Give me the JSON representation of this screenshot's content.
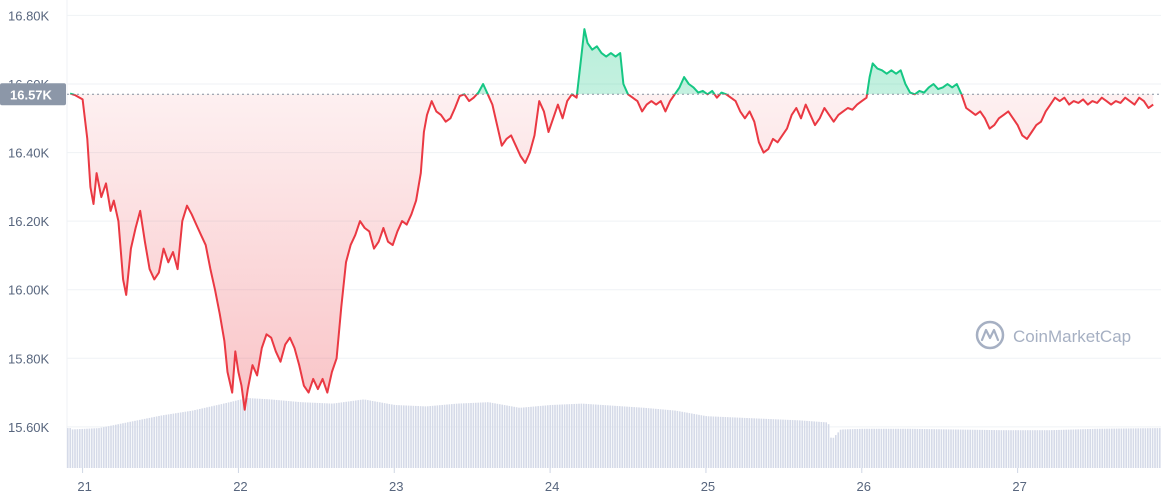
{
  "chart_data": {
    "type": "line",
    "title": "",
    "xlabel": "",
    "ylabel": "",
    "y_tick_labels": [
      "16.80K",
      "16.60K",
      "16.40K",
      "16.20K",
      "16.00K",
      "15.80K",
      "15.60K"
    ],
    "y_tick_values": [
      16800,
      16600,
      16400,
      16200,
      16000,
      15800,
      15600
    ],
    "x_tick_labels": [
      "21",
      "22",
      "23",
      "24",
      "25",
      "26",
      "27"
    ],
    "x_tick_values": [
      21,
      22,
      23,
      24,
      25,
      26,
      27
    ],
    "xlim": [
      20.9,
      27.92
    ],
    "ylim": [
      15480,
      16845
    ],
    "baseline": 16570,
    "current_price_label": "16.57K",
    "grid": true,
    "colors": {
      "up": "#16c784",
      "down": "#ea3943",
      "volume": "#d5dae8",
      "label_bg": "#8c97a8",
      "grid": "#eff2f5"
    },
    "series": [
      {
        "points": [
          [
            20.92,
            16572
          ],
          [
            20.95,
            16568
          ],
          [
            21.0,
            16555
          ],
          [
            21.03,
            16440
          ],
          [
            21.05,
            16300
          ],
          [
            21.07,
            16250
          ],
          [
            21.09,
            16340
          ],
          [
            21.12,
            16270
          ],
          [
            21.15,
            16310
          ],
          [
            21.18,
            16230
          ],
          [
            21.2,
            16260
          ],
          [
            21.23,
            16200
          ],
          [
            21.26,
            16030
          ],
          [
            21.28,
            15985
          ],
          [
            21.31,
            16120
          ],
          [
            21.34,
            16180
          ],
          [
            21.37,
            16230
          ],
          [
            21.4,
            16140
          ],
          [
            21.43,
            16060
          ],
          [
            21.46,
            16030
          ],
          [
            21.49,
            16050
          ],
          [
            21.52,
            16120
          ],
          [
            21.55,
            16080
          ],
          [
            21.58,
            16110
          ],
          [
            21.61,
            16060
          ],
          [
            21.64,
            16200
          ],
          [
            21.67,
            16245
          ],
          [
            21.7,
            16220
          ],
          [
            21.73,
            16190
          ],
          [
            21.76,
            16160
          ],
          [
            21.79,
            16130
          ],
          [
            21.82,
            16060
          ],
          [
            21.85,
            16000
          ],
          [
            21.88,
            15930
          ],
          [
            21.91,
            15850
          ],
          [
            21.93,
            15760
          ],
          [
            21.96,
            15700
          ],
          [
            21.98,
            15820
          ],
          [
            22.0,
            15760
          ],
          [
            22.02,
            15720
          ],
          [
            22.04,
            15650
          ],
          [
            22.06,
            15710
          ],
          [
            22.09,
            15780
          ],
          [
            22.12,
            15750
          ],
          [
            22.15,
            15830
          ],
          [
            22.18,
            15870
          ],
          [
            22.21,
            15860
          ],
          [
            22.24,
            15820
          ],
          [
            22.27,
            15790
          ],
          [
            22.3,
            15840
          ],
          [
            22.33,
            15860
          ],
          [
            22.36,
            15830
          ],
          [
            22.39,
            15780
          ],
          [
            22.42,
            15720
          ],
          [
            22.45,
            15700
          ],
          [
            22.48,
            15740
          ],
          [
            22.51,
            15710
          ],
          [
            22.54,
            15740
          ],
          [
            22.57,
            15700
          ],
          [
            22.6,
            15760
          ],
          [
            22.63,
            15800
          ],
          [
            22.66,
            15950
          ],
          [
            22.69,
            16080
          ],
          [
            22.72,
            16130
          ],
          [
            22.75,
            16160
          ],
          [
            22.78,
            16200
          ],
          [
            22.81,
            16180
          ],
          [
            22.84,
            16170
          ],
          [
            22.87,
            16120
          ],
          [
            22.9,
            16140
          ],
          [
            22.93,
            16180
          ],
          [
            22.96,
            16140
          ],
          [
            22.99,
            16130
          ],
          [
            23.02,
            16170
          ],
          [
            23.05,
            16200
          ],
          [
            23.08,
            16190
          ],
          [
            23.11,
            16220
          ],
          [
            23.14,
            16260
          ],
          [
            23.17,
            16340
          ],
          [
            23.19,
            16460
          ],
          [
            23.21,
            16510
          ],
          [
            23.24,
            16550
          ],
          [
            23.27,
            16520
          ],
          [
            23.3,
            16510
          ],
          [
            23.33,
            16490
          ],
          [
            23.36,
            16500
          ],
          [
            23.39,
            16530
          ],
          [
            23.42,
            16565
          ],
          [
            23.45,
            16570
          ],
          [
            23.48,
            16550
          ],
          [
            23.51,
            16560
          ],
          [
            23.54,
            16575
          ],
          [
            23.57,
            16600
          ],
          [
            23.6,
            16570
          ],
          [
            23.63,
            16540
          ],
          [
            23.66,
            16480
          ],
          [
            23.69,
            16420
          ],
          [
            23.72,
            16440
          ],
          [
            23.75,
            16450
          ],
          [
            23.78,
            16420
          ],
          [
            23.81,
            16390
          ],
          [
            23.84,
            16370
          ],
          [
            23.87,
            16400
          ],
          [
            23.9,
            16450
          ],
          [
            23.93,
            16550
          ],
          [
            23.96,
            16520
          ],
          [
            23.99,
            16460
          ],
          [
            24.02,
            16500
          ],
          [
            24.05,
            16540
          ],
          [
            24.08,
            16500
          ],
          [
            24.11,
            16550
          ],
          [
            24.14,
            16570
          ],
          [
            24.17,
            16560
          ],
          [
            24.2,
            16680
          ],
          [
            24.22,
            16760
          ],
          [
            24.24,
            16720
          ],
          [
            24.27,
            16700
          ],
          [
            24.3,
            16710
          ],
          [
            24.33,
            16690
          ],
          [
            24.36,
            16680
          ],
          [
            24.39,
            16690
          ],
          [
            24.42,
            16680
          ],
          [
            24.45,
            16690
          ],
          [
            24.47,
            16600
          ],
          [
            24.5,
            16570
          ],
          [
            24.53,
            16560
          ],
          [
            24.56,
            16550
          ],
          [
            24.59,
            16520
          ],
          [
            24.62,
            16540
          ],
          [
            24.65,
            16550
          ],
          [
            24.68,
            16540
          ],
          [
            24.71,
            16550
          ],
          [
            24.74,
            16520
          ],
          [
            24.77,
            16550
          ],
          [
            24.8,
            16570
          ],
          [
            24.83,
            16590
          ],
          [
            24.86,
            16620
          ],
          [
            24.89,
            16600
          ],
          [
            24.92,
            16590
          ],
          [
            24.95,
            16575
          ],
          [
            24.98,
            16580
          ],
          [
            25.01,
            16570
          ],
          [
            25.04,
            16580
          ],
          [
            25.07,
            16560
          ],
          [
            25.1,
            16575
          ],
          [
            25.13,
            16570
          ],
          [
            25.16,
            16560
          ],
          [
            25.19,
            16550
          ],
          [
            25.22,
            16520
          ],
          [
            25.25,
            16500
          ],
          [
            25.28,
            16520
          ],
          [
            25.31,
            16490
          ],
          [
            25.34,
            16430
          ],
          [
            25.37,
            16400
          ],
          [
            25.4,
            16410
          ],
          [
            25.43,
            16440
          ],
          [
            25.46,
            16430
          ],
          [
            25.49,
            16450
          ],
          [
            25.52,
            16470
          ],
          [
            25.55,
            16510
          ],
          [
            25.58,
            16530
          ],
          [
            25.61,
            16500
          ],
          [
            25.64,
            16540
          ],
          [
            25.67,
            16510
          ],
          [
            25.7,
            16480
          ],
          [
            25.73,
            16500
          ],
          [
            25.76,
            16530
          ],
          [
            25.79,
            16510
          ],
          [
            25.82,
            16490
          ],
          [
            25.85,
            16510
          ],
          [
            25.88,
            16520
          ],
          [
            25.91,
            16530
          ],
          [
            25.94,
            16525
          ],
          [
            25.97,
            16540
          ],
          [
            26.0,
            16550
          ],
          [
            26.03,
            16560
          ],
          [
            26.05,
            16620
          ],
          [
            26.07,
            16660
          ],
          [
            26.1,
            16645
          ],
          [
            26.13,
            16640
          ],
          [
            26.16,
            16630
          ],
          [
            26.19,
            16640
          ],
          [
            26.22,
            16630
          ],
          [
            26.25,
            16640
          ],
          [
            26.28,
            16600
          ],
          [
            26.31,
            16575
          ],
          [
            26.34,
            16570
          ],
          [
            26.37,
            16580
          ],
          [
            26.4,
            16575
          ],
          [
            26.43,
            16590
          ],
          [
            26.46,
            16600
          ],
          [
            26.49,
            16585
          ],
          [
            26.52,
            16590
          ],
          [
            26.55,
            16600
          ],
          [
            26.58,
            16590
          ],
          [
            26.61,
            16600
          ],
          [
            26.64,
            16570
          ],
          [
            26.67,
            16530
          ],
          [
            26.7,
            16520
          ],
          [
            26.73,
            16510
          ],
          [
            26.76,
            16520
          ],
          [
            26.79,
            16500
          ],
          [
            26.82,
            16470
          ],
          [
            26.85,
            16480
          ],
          [
            26.88,
            16500
          ],
          [
            26.91,
            16510
          ],
          [
            26.94,
            16520
          ],
          [
            26.97,
            16500
          ],
          [
            27.0,
            16480
          ],
          [
            27.03,
            16450
          ],
          [
            27.06,
            16440
          ],
          [
            27.09,
            16460
          ],
          [
            27.12,
            16480
          ],
          [
            27.15,
            16490
          ],
          [
            27.18,
            16520
          ],
          [
            27.21,
            16540
          ],
          [
            27.24,
            16560
          ],
          [
            27.27,
            16550
          ],
          [
            27.3,
            16560
          ],
          [
            27.33,
            16540
          ],
          [
            27.36,
            16550
          ],
          [
            27.39,
            16545
          ],
          [
            27.42,
            16555
          ],
          [
            27.45,
            16540
          ],
          [
            27.48,
            16550
          ],
          [
            27.51,
            16545
          ],
          [
            27.54,
            16560
          ],
          [
            27.57,
            16550
          ],
          [
            27.6,
            16540
          ],
          [
            27.63,
            16550
          ],
          [
            27.66,
            16545
          ],
          [
            27.69,
            16560
          ],
          [
            27.72,
            16550
          ],
          [
            27.75,
            16540
          ],
          [
            27.78,
            16560
          ],
          [
            27.81,
            16550
          ],
          [
            27.84,
            16530
          ],
          [
            27.87,
            16540
          ]
        ]
      }
    ],
    "volume": {
      "points": [
        [
          20.92,
          0.55
        ],
        [
          21.1,
          0.57
        ],
        [
          21.3,
          0.66
        ],
        [
          21.5,
          0.75
        ],
        [
          21.7,
          0.82
        ],
        [
          21.9,
          0.92
        ],
        [
          22.05,
          1.0
        ],
        [
          22.2,
          0.98
        ],
        [
          22.4,
          0.94
        ],
        [
          22.6,
          0.92
        ],
        [
          22.8,
          0.98
        ],
        [
          23.0,
          0.9
        ],
        [
          23.2,
          0.88
        ],
        [
          23.4,
          0.92
        ],
        [
          23.6,
          0.94
        ],
        [
          23.8,
          0.86
        ],
        [
          24.0,
          0.9
        ],
        [
          24.2,
          0.92
        ],
        [
          24.4,
          0.89
        ],
        [
          24.6,
          0.86
        ],
        [
          24.8,
          0.82
        ],
        [
          25.0,
          0.74
        ],
        [
          25.2,
          0.72
        ],
        [
          25.4,
          0.7
        ],
        [
          25.6,
          0.68
        ],
        [
          25.78,
          0.65
        ],
        [
          25.8,
          0.4
        ],
        [
          25.86,
          0.55
        ],
        [
          26.0,
          0.56
        ],
        [
          26.3,
          0.56
        ],
        [
          26.6,
          0.55
        ],
        [
          26.9,
          0.54
        ],
        [
          27.2,
          0.54
        ],
        [
          27.5,
          0.56
        ],
        [
          27.9,
          0.57
        ]
      ]
    }
  },
  "watermark": {
    "text": "CoinMarketCap",
    "icon": "coinmarketcap-logo-icon"
  }
}
